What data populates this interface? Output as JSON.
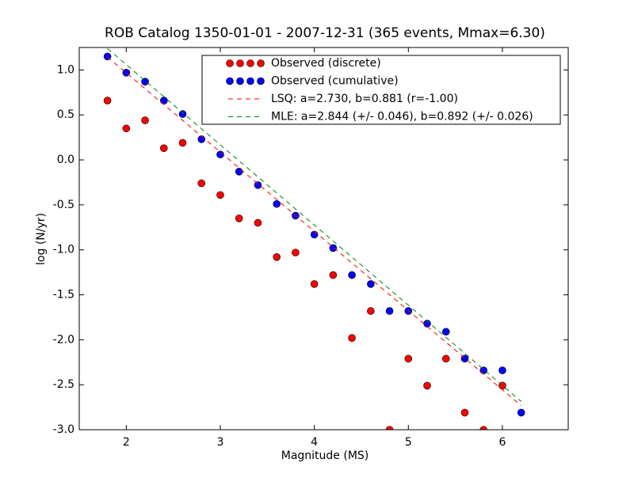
{
  "chart_data": {
    "type": "scatter",
    "title": "ROB Catalog 1350-01-01 - 2007-12-31 (365 events, Mmax=6.30)",
    "x_label": "Magnitude (MS)",
    "y_label": "log (N/yr)",
    "x": [
      1.8,
      2.0,
      2.2,
      2.4,
      2.6,
      2.8,
      3.0,
      3.2,
      3.4,
      3.6,
      3.8,
      4.0,
      4.2,
      4.4,
      4.6,
      4.8,
      5.0,
      5.2,
      5.4,
      5.6,
      5.8,
      6.0,
      6.2
    ],
    "series": [
      {
        "name": "Observed (discrete)",
        "type": "scatter",
        "color": "#ff0000",
        "values": [
          0.66,
          0.35,
          0.44,
          0.13,
          0.19,
          -0.26,
          -0.39,
          -0.65,
          -0.7,
          -1.08,
          -1.03,
          -1.38,
          -1.28,
          -1.98,
          -1.68,
          -3.0,
          -2.21,
          -2.51,
          -2.21,
          -2.81,
          -3.0,
          -2.51,
          null
        ]
      },
      {
        "name": "Observed (cumulative)",
        "type": "scatter",
        "color": "#0000ff",
        "values": [
          1.15,
          0.97,
          0.87,
          0.66,
          0.51,
          0.23,
          0.06,
          -0.13,
          -0.28,
          -0.49,
          -0.62,
          -0.83,
          -0.98,
          -1.28,
          -1.38,
          -1.68,
          -1.68,
          -1.82,
          -1.91,
          -2.21,
          -2.34,
          -2.34,
          -2.81
        ]
      },
      {
        "name": "LSQ: a=2.730, b=0.881 (r=-1.00)",
        "type": "line",
        "dashed": true,
        "color": "#ff0000",
        "x": [
          1.8,
          6.2
        ],
        "values": [
          1.144,
          -2.732
        ]
      },
      {
        "name": "MLE: a=2.844 (+/- 0.046), b=0.892 (+/- 0.026)",
        "type": "line",
        "dashed": true,
        "color": "#008000",
        "x": [
          1.8,
          6.2
        ],
        "values": [
          1.238,
          -2.686
        ]
      }
    ],
    "xlim": [
      1.5,
      6.7
    ],
    "ylim": [
      -3.0,
      1.25
    ],
    "xticks": [
      2,
      3,
      4,
      5,
      6
    ],
    "yticks": [
      {
        "value": -3.0,
        "label": "-3.0"
      },
      {
        "value": -2.5,
        "label": "-2.5"
      },
      {
        "value": -2.0,
        "label": "-2.0"
      },
      {
        "value": -1.5,
        "label": "-1.5"
      },
      {
        "value": -1.0,
        "label": "-1.0"
      },
      {
        "value": -0.5,
        "label": "-0.5"
      },
      {
        "value": 0.0,
        "label": "0.0"
      },
      {
        "value": 0.5,
        "label": "0.5"
      },
      {
        "value": 1.0,
        "label": "1.0"
      }
    ],
    "legend": "upper right",
    "grid": false
  }
}
